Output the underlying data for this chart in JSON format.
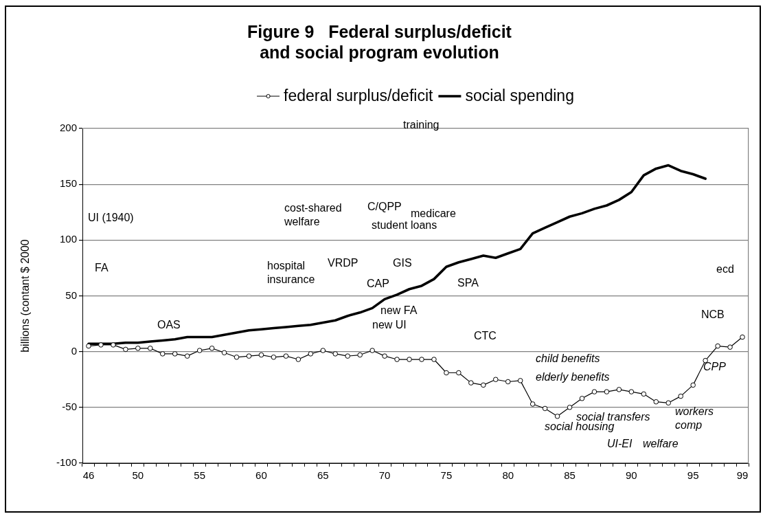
{
  "chart_data": {
    "type": "line",
    "title": "Figure 9   Federal surplus/deficit\nand social program evolution",
    "ylabel": "billions (contant $ 2000",
    "categories": [
      "46",
      null,
      null,
      null,
      "50",
      null,
      null,
      null,
      null,
      "55",
      null,
      null,
      null,
      null,
      "60",
      null,
      null,
      null,
      null,
      "65",
      null,
      null,
      null,
      null,
      "70",
      null,
      null,
      null,
      null,
      "75",
      null,
      null,
      null,
      null,
      "80",
      null,
      null,
      null,
      null,
      "85",
      null,
      null,
      null,
      null,
      "90",
      null,
      null,
      null,
      null,
      "95",
      null,
      null,
      null,
      "99"
    ],
    "series": [
      {
        "name": "federal surplus/deficit",
        "color": "#000000",
        "marker": "circle",
        "values": [
          5,
          6,
          6,
          2,
          3,
          3,
          -2,
          -2,
          -4,
          1,
          3,
          -1,
          -5,
          -4,
          -3,
          -5,
          -4,
          -7,
          -2,
          1,
          -2,
          -4,
          -3,
          1,
          -4,
          -7,
          -7,
          -7,
          -7,
          -19,
          -19,
          -28,
          -30,
          -25,
          -27,
          -26,
          -47,
          -51,
          -58,
          -50,
          -42,
          -36,
          -36,
          -34,
          -36,
          -38,
          -45,
          -46,
          -40,
          -30,
          -8,
          5,
          4,
          13
        ]
      },
      {
        "name": "social spending",
        "color": "#000000",
        "marker": "none",
        "values": [
          7,
          7,
          7,
          8,
          8,
          9,
          10,
          11,
          13,
          13,
          13,
          15,
          17,
          19,
          20,
          21,
          22,
          23,
          24,
          26,
          28,
          32,
          35,
          39,
          47,
          51,
          56,
          59,
          65,
          76,
          80,
          83,
          86,
          84,
          88,
          92,
          106,
          111,
          116,
          121,
          124,
          128,
          131,
          136,
          143,
          158,
          164,
          167,
          162,
          159,
          155,
          null,
          null,
          null
        ]
      }
    ],
    "ylim": [
      -100,
      200
    ],
    "yticks": [
      -100,
      -50,
      0,
      50,
      100,
      150,
      200
    ],
    "grid": "y",
    "legend": "top",
    "annotations": [
      "training",
      "UI (1940)",
      "cost-shared\nwelfare",
      "C/QPP",
      "medicare",
      "student loans",
      "FA",
      "hospital\ninsurance",
      "VRDP",
      "GIS",
      "ecd",
      "CAP",
      "SPA",
      "new FA",
      "NCB",
      "OAS",
      "new UI",
      "CTC",
      "child benefits",
      "CPP",
      "elderly benefits",
      "workers\ncomp",
      "social transfers",
      "social housing",
      "UI-EI",
      "welfare"
    ]
  }
}
